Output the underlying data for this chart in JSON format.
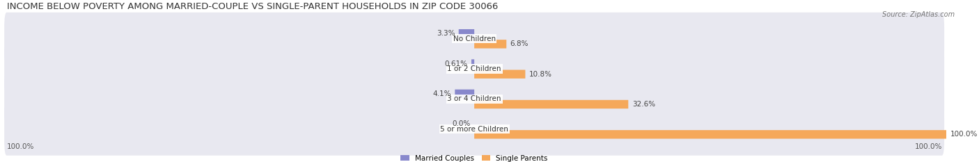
{
  "title": "INCOME BELOW POVERTY AMONG MARRIED-COUPLE VS SINGLE-PARENT HOUSEHOLDS IN ZIP CODE 30066",
  "source": "Source: ZipAtlas.com",
  "categories": [
    "No Children",
    "1 or 2 Children",
    "3 or 4 Children",
    "5 or more Children"
  ],
  "married_values": [
    3.3,
    0.61,
    4.1,
    0.0
  ],
  "single_values": [
    6.8,
    10.8,
    32.6,
    100.0
  ],
  "married_color": "#8888cc",
  "single_color": "#f5a85a",
  "row_bg_color": "#e8e8f0",
  "max_value": 100.0,
  "legend_married": "Married Couples",
  "legend_single": "Single Parents",
  "title_fontsize": 9.5,
  "label_fontsize": 7.5,
  "bar_height": 0.28,
  "x_left_label": "100.0%",
  "x_right_label": "100.0%"
}
